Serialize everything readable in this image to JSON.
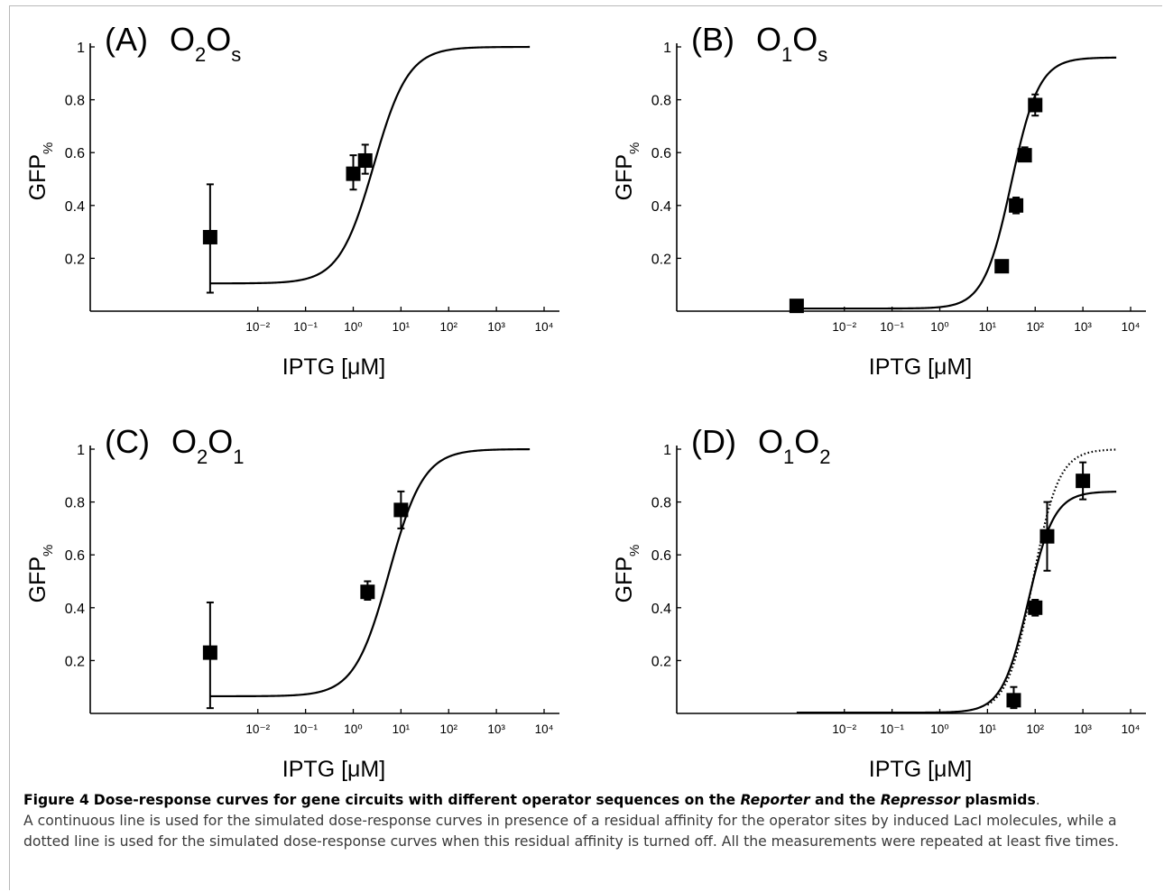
{
  "figure": {
    "caption_label": "Figure 4",
    "caption_title_parts": [
      "Dose-response curves for gene circuits with different operator sequences on the ",
      "Reporter",
      " and the ",
      "Repressor",
      " plasmids",
      "."
    ],
    "caption_body": "A continuous line is used for the simulated dose-response curves in presence of a residual affinity for the operator sites by induced LacI molecules, while a dotted line is used for the simulated dose-response curves when this residual affinity is turned off. All the measurements were repeated at least five times."
  },
  "chart_data": [
    {
      "type": "scatter",
      "panel": "(A)",
      "title_main": "O",
      "title_sub1": "2",
      "title_mid": "O",
      "title_sub2": "s",
      "xlabel": "IPTG [μM]",
      "ylabel_main": "GFP",
      "ylabel_sub": "%",
      "xscale": "log",
      "xlim": [
        -4,
        4
      ],
      "ylim": [
        0,
        1
      ],
      "xticks": [
        -2,
        -1,
        0,
        1,
        2,
        3,
        4
      ],
      "xtick_labels": [
        "10⁻²",
        "10⁻¹",
        "10⁰",
        "10¹",
        "10²",
        "10³",
        "10⁴"
      ],
      "yticks": [
        0.2,
        0.4,
        0.6,
        0.8,
        1
      ],
      "ytick_labels": [
        "0.2",
        "0.4",
        "0.6",
        "0.8",
        "1"
      ],
      "points": [
        {
          "x": -3,
          "y": 0.28,
          "err_low": 0.07,
          "err_high": 0.48
        },
        {
          "x": 0,
          "y": 0.52,
          "err_low": 0.46,
          "err_high": 0.59
        },
        {
          "x": 0.25,
          "y": 0.57,
          "err_low": 0.52,
          "err_high": 0.63
        }
      ],
      "series": [
        {
          "style": "solid",
          "min": 0.105,
          "max": 1.0,
          "log_ec50": 0.43,
          "n": 1.2,
          "x_start": -3,
          "x_end": 3.7
        }
      ]
    },
    {
      "type": "scatter",
      "panel": "(B)",
      "title_main": "O",
      "title_sub1": "1",
      "title_mid": "O",
      "title_sub2": "s",
      "xlabel": "IPTG [μM]",
      "ylabel_main": "GFP",
      "ylabel_sub": "%",
      "xscale": "log",
      "xlim": [
        -4,
        4
      ],
      "ylim": [
        0,
        1
      ],
      "xticks": [
        -2,
        -1,
        0,
        1,
        2,
        3,
        4
      ],
      "xtick_labels": [
        "10⁻²",
        "10⁻¹",
        "10⁰",
        "10¹",
        "10²",
        "10³",
        "10⁴"
      ],
      "yticks": [
        0.2,
        0.4,
        0.6,
        0.8,
        1
      ],
      "ytick_labels": [
        "0.2",
        "0.4",
        "0.6",
        "0.8",
        "1"
      ],
      "points": [
        {
          "x": -3,
          "y": 0.02
        },
        {
          "x": 1.3,
          "y": 0.17
        },
        {
          "x": 1.6,
          "y": 0.4,
          "err_low": 0.37,
          "err_high": 0.43
        },
        {
          "x": 1.78,
          "y": 0.59,
          "err_low": 0.57,
          "err_high": 0.62
        },
        {
          "x": 2.0,
          "y": 0.78,
          "err_low": 0.74,
          "err_high": 0.82
        }
      ],
      "series": [
        {
          "style": "solid",
          "min": 0.01,
          "max": 0.96,
          "log_ec50": 1.5,
          "n": 1.5,
          "x_start": -3,
          "x_end": 3.7
        }
      ]
    },
    {
      "type": "scatter",
      "panel": "(C)",
      "title_main": "O",
      "title_sub1": "2",
      "title_mid": "O",
      "title_sub2": "1",
      "xlabel": "IPTG [μM]",
      "ylabel_main": "GFP",
      "ylabel_sub": "%",
      "xscale": "log",
      "xlim": [
        -4,
        4
      ],
      "ylim": [
        0,
        1
      ],
      "xticks": [
        -2,
        -1,
        0,
        1,
        2,
        3,
        4
      ],
      "xtick_labels": [
        "10⁻²",
        "10⁻¹",
        "10⁰",
        "10¹",
        "10²",
        "10³",
        "10⁴"
      ],
      "yticks": [
        0.2,
        0.4,
        0.6,
        0.8,
        1
      ],
      "ytick_labels": [
        "0.2",
        "0.4",
        "0.6",
        "0.8",
        "1"
      ],
      "points": [
        {
          "x": -3,
          "y": 0.23,
          "err_low": 0.02,
          "err_high": 0.42
        },
        {
          "x": 0.3,
          "y": 0.46,
          "err_low": 0.43,
          "err_high": 0.5
        },
        {
          "x": 1.0,
          "y": 0.77,
          "err_low": 0.7,
          "err_high": 0.84
        }
      ],
      "series": [
        {
          "style": "solid",
          "min": 0.065,
          "max": 1.0,
          "log_ec50": 0.75,
          "n": 1.2,
          "x_start": -3,
          "x_end": 3.7
        }
      ]
    },
    {
      "type": "scatter",
      "panel": "(D)",
      "title_main": "O",
      "title_sub1": "1",
      "title_mid": "O",
      "title_sub2": "2",
      "xlabel": "IPTG [μM]",
      "ylabel_main": "GFP",
      "ylabel_sub": "%",
      "xscale": "log",
      "xlim": [
        -4,
        4
      ],
      "ylim": [
        0,
        1
      ],
      "xticks": [
        -2,
        -1,
        0,
        1,
        2,
        3,
        4
      ],
      "xtick_labels": [
        "10⁻²",
        "10⁻¹",
        "10⁰",
        "10¹",
        "10²",
        "10³",
        "10⁴"
      ],
      "yticks": [
        0.2,
        0.4,
        0.6,
        0.8,
        1
      ],
      "ytick_labels": [
        "0.2",
        "0.4",
        "0.6",
        "0.8",
        "1"
      ],
      "points": [
        {
          "x": 1.55,
          "y": 0.05,
          "err_low": 0.02,
          "err_high": 0.1
        },
        {
          "x": 2.0,
          "y": 0.4,
          "err_low": 0.37,
          "err_high": 0.43
        },
        {
          "x": 2.25,
          "y": 0.67,
          "err_low": 0.54,
          "err_high": 0.8
        },
        {
          "x": 3.0,
          "y": 0.88,
          "err_low": 0.81,
          "err_high": 0.95
        }
      ],
      "series": [
        {
          "style": "solid",
          "min": 0.003,
          "max": 0.84,
          "log_ec50": 1.85,
          "n": 1.6,
          "x_start": -3,
          "x_end": 3.7
        },
        {
          "style": "dotted",
          "min": 0.003,
          "max": 1.0,
          "log_ec50": 1.95,
          "n": 1.6,
          "x_start": 1.0,
          "x_end": 3.7
        }
      ]
    }
  ]
}
